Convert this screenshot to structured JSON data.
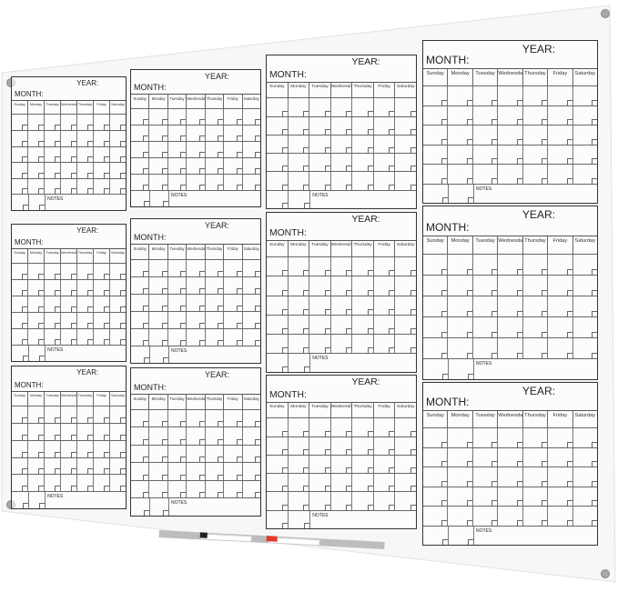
{
  "calendar": {
    "month_label": "MONTH:",
    "year_label": "YEAR:",
    "notes_label": "NOTES",
    "days": [
      "Sunday",
      "Monday",
      "Tuesday",
      "Wednesday",
      "Thursday",
      "Friday",
      "Saturday"
    ],
    "count": 12
  },
  "colors": {
    "board": "#f7f7f7",
    "lines": "#333333",
    "marker_black": "#222222",
    "marker_red": "#e23a2e",
    "tray": "#bdbdbd"
  },
  "accessories": {
    "markers": [
      "black-marker",
      "red-marker"
    ]
  }
}
